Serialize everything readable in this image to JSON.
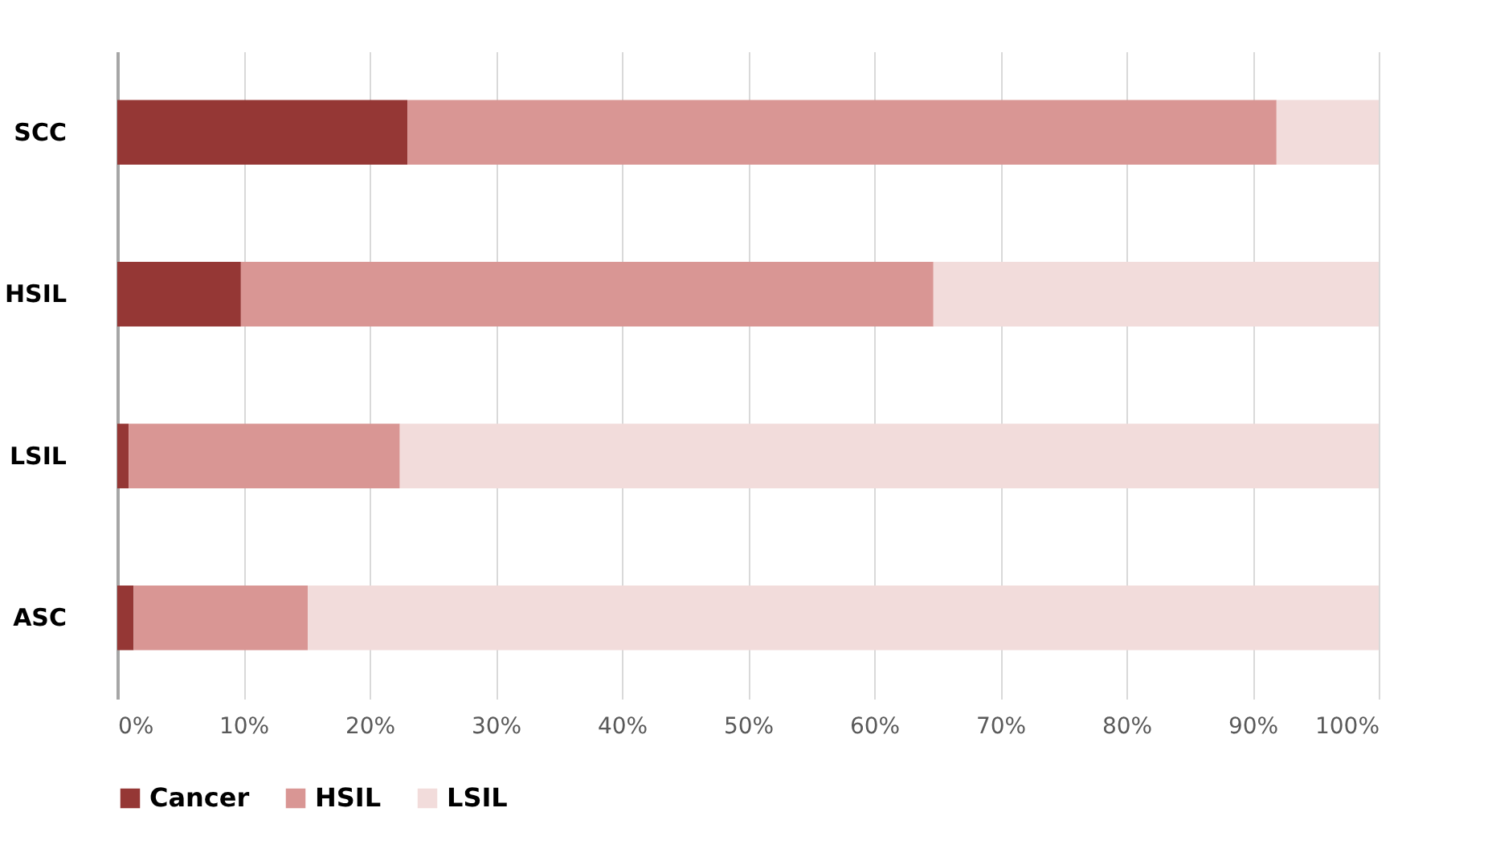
{
  "chart_data": {
    "type": "bar",
    "orientation": "horizontal",
    "stacked": true,
    "categories": [
      "SCC",
      "HSIL",
      "LSIL",
      "ASC"
    ],
    "series": [
      {
        "name": "Cancer",
        "color": "#953735",
        "values": [
          23.0,
          9.8,
          0.9,
          1.3
        ]
      },
      {
        "name": "HSIL",
        "color": "#d99694",
        "values": [
          68.9,
          54.9,
          21.5,
          13.8
        ]
      },
      {
        "name": "LSIL",
        "color": "#f2dcdb",
        "values": [
          8.1,
          35.3,
          77.6,
          84.9
        ]
      }
    ],
    "xlim": [
      0,
      100
    ],
    "xticks": [
      {
        "value": 0,
        "label": "0%"
      },
      {
        "value": 10,
        "label": "10%"
      },
      {
        "value": 20,
        "label": "20%"
      },
      {
        "value": 30,
        "label": "30%"
      },
      {
        "value": 40,
        "label": "40%"
      },
      {
        "value": 50,
        "label": "50%"
      },
      {
        "value": 60,
        "label": "60%"
      },
      {
        "value": 70,
        "label": "70%"
      },
      {
        "value": 80,
        "label": "80%"
      },
      {
        "value": 90,
        "label": "90%"
      },
      {
        "value": 100,
        "label": "100%"
      }
    ],
    "grid": "x",
    "legend": "bottom"
  }
}
